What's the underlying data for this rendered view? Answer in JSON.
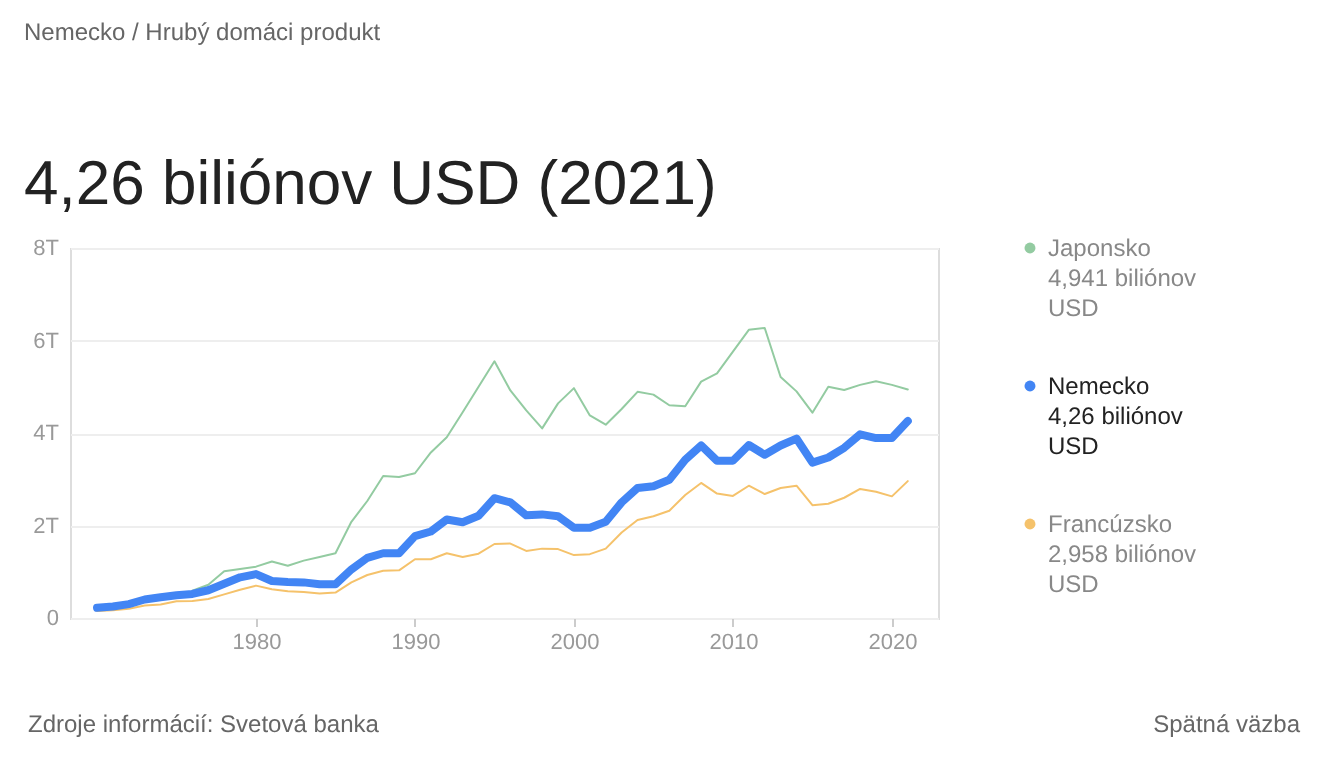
{
  "chart_data": {
    "type": "line",
    "title": "4,26 biliónov USD (2021)",
    "annotations": [
      "Nemecko / Hrubý domáci produkt",
      "Zdroje informácií: Svetová banka",
      "Spätná väzba"
    ],
    "x": [
      1970,
      1971,
      1972,
      1973,
      1974,
      1975,
      1976,
      1977,
      1978,
      1979,
      1980,
      1981,
      1982,
      1983,
      1984,
      1985,
      1986,
      1987,
      1988,
      1989,
      1990,
      1991,
      1992,
      1993,
      1994,
      1995,
      1996,
      1997,
      1998,
      1999,
      2000,
      2001,
      2002,
      2003,
      2004,
      2005,
      2006,
      2007,
      2008,
      2009,
      2010,
      2011,
      2012,
      2013,
      2014,
      2015,
      2016,
      2017,
      2018,
      2019,
      2020,
      2021
    ],
    "series": [
      {
        "name": "Japonsko 4,941 biliónov USD",
        "color": "#93cba1",
        "values": [
          null,
          null,
          null,
          null,
          null,
          null,
          0.59,
          0.72,
          1.01,
          1.06,
          1.11,
          1.22,
          1.13,
          1.24,
          1.32,
          1.4,
          2.08,
          2.53,
          3.07,
          3.05,
          3.13,
          3.58,
          3.91,
          4.45,
          5.0,
          5.55,
          4.92,
          4.49,
          4.1,
          4.64,
          4.97,
          4.38,
          4.18,
          4.52,
          4.89,
          4.83,
          4.6,
          4.58,
          5.11,
          5.29,
          5.76,
          6.23,
          6.27,
          5.21,
          4.9,
          4.44,
          5.0,
          4.93,
          5.04,
          5.12,
          5.04,
          4.94
        ]
      },
      {
        "name": "Nemecko 4,26 biliónov USD",
        "color": "#4285f4",
        "values": [
          0.22,
          0.25,
          0.3,
          0.4,
          0.45,
          0.49,
          0.52,
          0.6,
          0.74,
          0.88,
          0.95,
          0.8,
          0.78,
          0.77,
          0.73,
          0.73,
          1.05,
          1.3,
          1.4,
          1.4,
          1.77,
          1.87,
          2.13,
          2.07,
          2.21,
          2.59,
          2.5,
          2.22,
          2.24,
          2.2,
          1.95,
          1.95,
          2.08,
          2.5,
          2.81,
          2.85,
          2.99,
          3.42,
          3.73,
          3.4,
          3.4,
          3.74,
          3.53,
          3.73,
          3.88,
          3.36,
          3.47,
          3.68,
          3.97,
          3.89,
          3.89,
          4.26
        ]
      },
      {
        "name": "Francúzsko 2,958 biliónov USD",
        "color": "#f5c26b",
        "values": [
          0.15,
          0.17,
          0.2,
          0.27,
          0.29,
          0.36,
          0.37,
          0.41,
          0.51,
          0.61,
          0.7,
          0.62,
          0.58,
          0.56,
          0.53,
          0.55,
          0.77,
          0.93,
          1.02,
          1.03,
          1.27,
          1.27,
          1.4,
          1.32,
          1.39,
          1.6,
          1.61,
          1.45,
          1.5,
          1.49,
          1.36,
          1.38,
          1.5,
          1.85,
          2.12,
          2.2,
          2.32,
          2.66,
          2.92,
          2.69,
          2.64,
          2.86,
          2.68,
          2.81,
          2.86,
          2.44,
          2.47,
          2.6,
          2.79,
          2.73,
          2.63,
          2.96
        ]
      }
    ],
    "xlim": [
      1968.3,
      2022.9
    ],
    "xticks": [
      1980,
      1990,
      2000,
      2010,
      2020
    ],
    "ylim": [
      0,
      8
    ],
    "yticks": [
      0,
      {
        "value": 2,
        "label": "2T"
      },
      {
        "value": 4,
        "label": "4T"
      },
      {
        "value": 6,
        "label": "6T"
      },
      {
        "value": 8,
        "label": "8T"
      }
    ],
    "grid": "y",
    "legend": "right",
    "marker": "none",
    "line_style": "solid"
  }
}
